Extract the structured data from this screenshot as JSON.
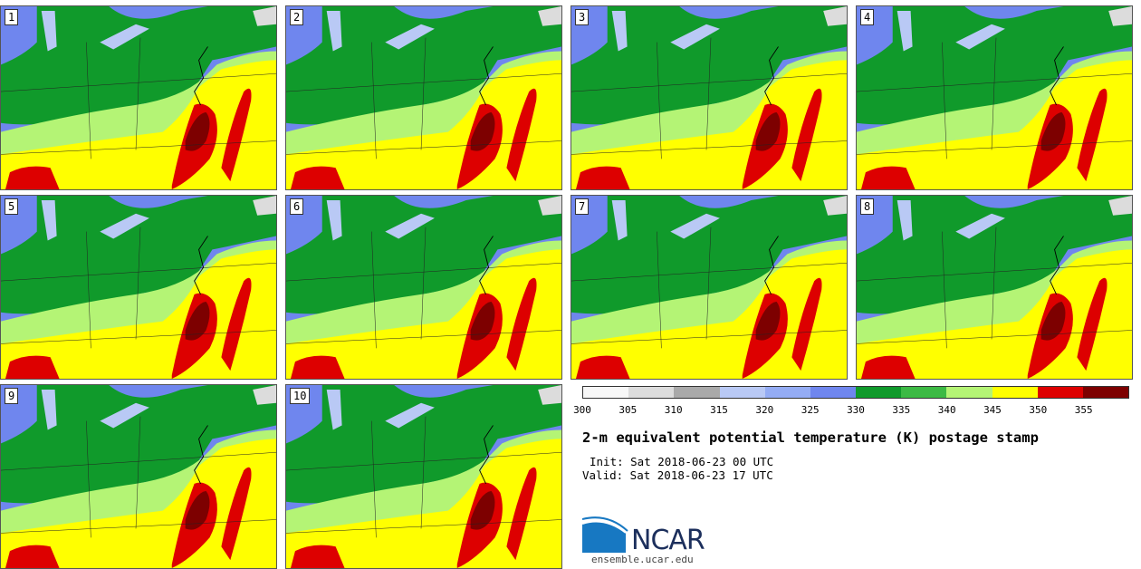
{
  "panels": [
    "1",
    "2",
    "3",
    "4",
    "5",
    "6",
    "7",
    "8",
    "9",
    "10"
  ],
  "colorbar": {
    "colors": [
      "#f7f7f7",
      "#dcdcdc",
      "#a9a9a9",
      "#b9c9f5",
      "#94acf4",
      "#6f86ee",
      "#109a2b",
      "#3cba44",
      "#b4f475",
      "#ffff00",
      "#dd0000",
      "#7d0000"
    ],
    "ticks": [
      "300",
      "305",
      "310",
      "315",
      "320",
      "325",
      "330",
      "335",
      "340",
      "345",
      "350",
      "355"
    ]
  },
  "title": "2-m equivalent potential temperature (K) postage stamp",
  "init_line": "Init: Sat 2018-06-23 00 UTC",
  "valid_line": "Valid: Sat 2018-06-23 17 UTC",
  "logo_text": "NCAR",
  "site": "ensemble.ucar.edu"
}
